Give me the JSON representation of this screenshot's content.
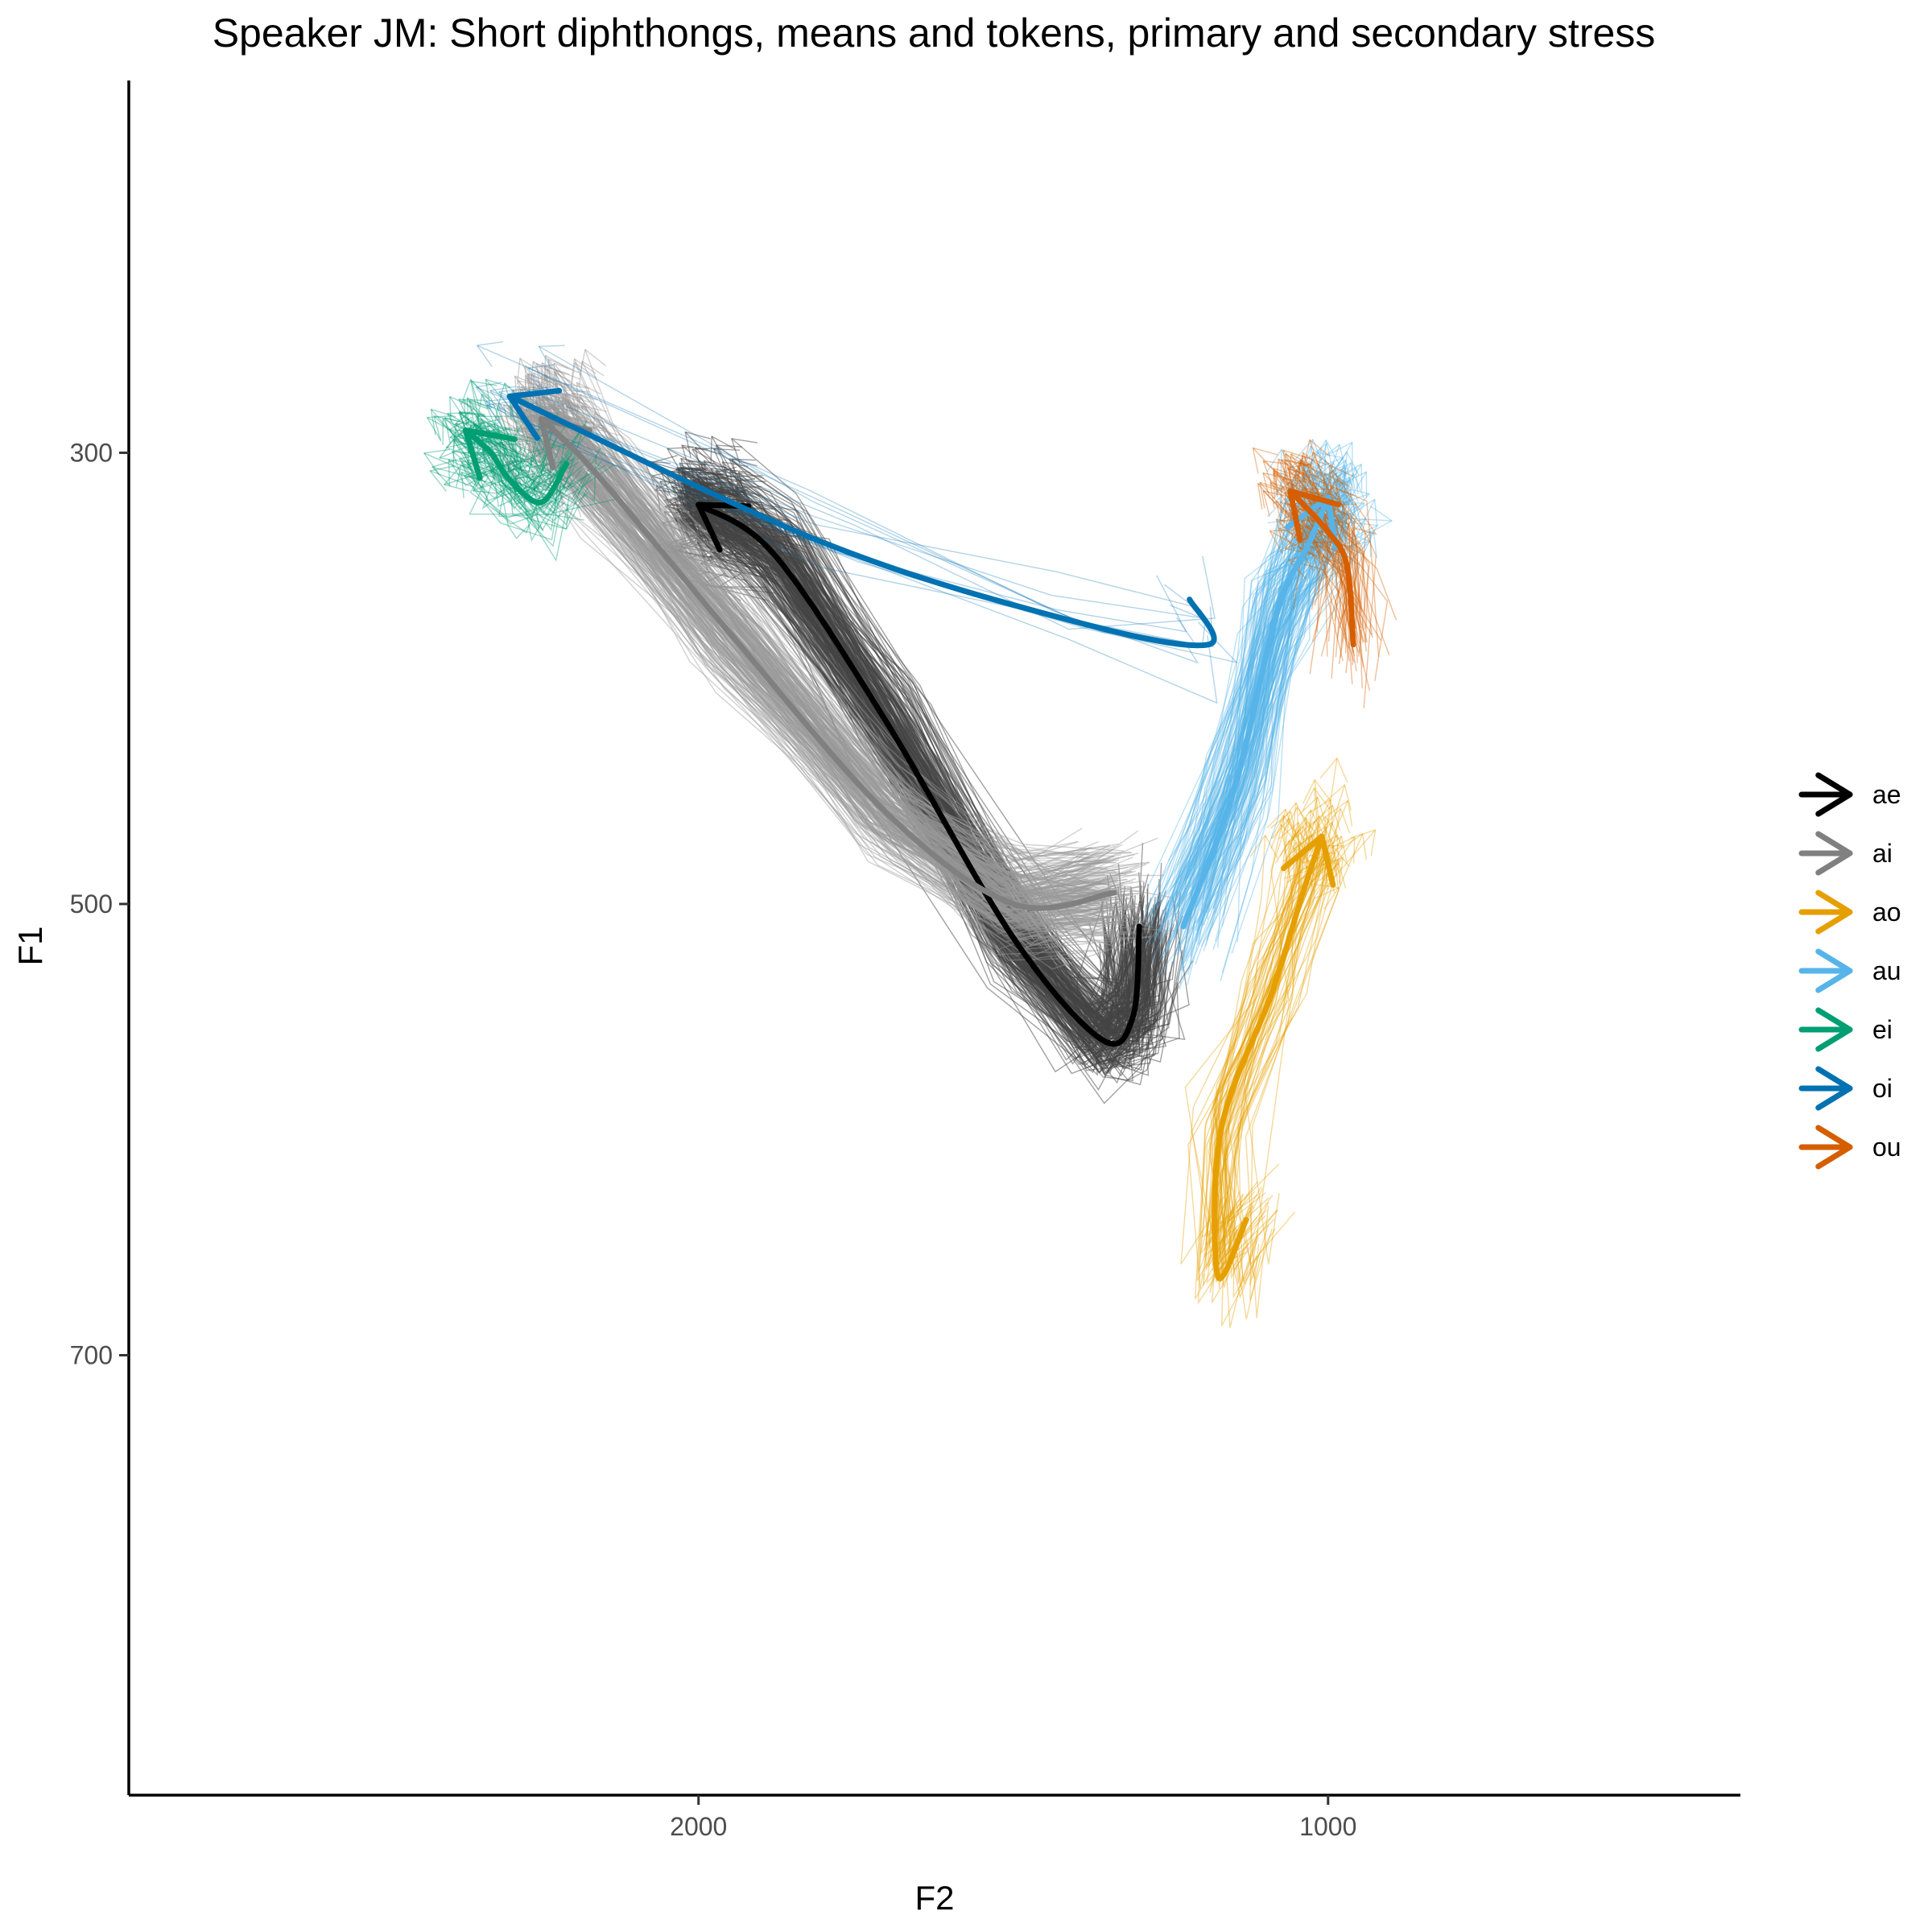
{
  "chart_data": {
    "type": "line",
    "title": "Speaker JM: Short diphthongs, means and tokens, primary and secondary stress",
    "xlabel": "F2",
    "ylabel": "F1",
    "x_reversed": true,
    "y_reversed": true,
    "xlim": [
      2905,
      345
    ],
    "ylim": [
      135,
      895
    ],
    "x_ticks": [
      2000,
      1000
    ],
    "y_ticks": [
      300,
      500,
      700
    ],
    "grid": false,
    "legend_position": "right",
    "series": [
      {
        "name": "ae",
        "color": "#000000",
        "mean_trajectory": [
          [
            1300,
            510
          ],
          [
            1310,
            550
          ],
          [
            1360,
            560
          ],
          [
            1500,
            515
          ],
          [
            1700,
            420
          ],
          [
            1880,
            345
          ],
          [
            2000,
            323
          ]
        ],
        "token_color": "#444444",
        "token_opacity": 0.5,
        "token_count": 260
      },
      {
        "name": "ai",
        "color": "#808080",
        "mean_trajectory": [
          [
            1340,
            495
          ],
          [
            1500,
            500
          ],
          [
            1700,
            460
          ],
          [
            1950,
            380
          ],
          [
            2160,
            310
          ],
          [
            2250,
            285
          ]
        ],
        "token_color": "#999999",
        "token_opacity": 0.45,
        "token_count": 240
      },
      {
        "name": "ao",
        "color": "#E69F00",
        "mean_trajectory": [
          [
            1130,
            640
          ],
          [
            1175,
            665
          ],
          [
            1170,
            600
          ],
          [
            1090,
            540
          ],
          [
            1040,
            495
          ],
          [
            1010,
            470
          ]
        ],
        "token_color": "#E69F00",
        "token_opacity": 0.4,
        "token_count": 60
      },
      {
        "name": "au",
        "color": "#56B4E9",
        "mean_trajectory": [
          [
            1230,
            510
          ],
          [
            1150,
            450
          ],
          [
            1080,
            370
          ],
          [
            1030,
            340
          ],
          [
            1000,
            320
          ]
        ],
        "token_color": "#56B4E9",
        "token_opacity": 0.4,
        "token_count": 150
      },
      {
        "name": "ei",
        "color": "#009E73",
        "mean_trajectory": [
          [
            2210,
            305
          ],
          [
            2250,
            322
          ],
          [
            2300,
            312
          ],
          [
            2330,
            300
          ],
          [
            2370,
            290
          ]
        ],
        "token_color": "#009E73",
        "token_opacity": 0.4,
        "token_count": 70
      },
      {
        "name": "oi",
        "color": "#0072B2",
        "mean_trajectory": [
          [
            1220,
            365
          ],
          [
            1190,
            385
          ],
          [
            1400,
            375
          ],
          [
            1800,
            340
          ],
          [
            2300,
            275
          ]
        ],
        "token_color": "#0072B2",
        "token_opacity": 0.3,
        "token_count": 10
      },
      {
        "name": "ou",
        "color": "#D55E00",
        "mean_trajectory": [
          [
            960,
            385
          ],
          [
            970,
            350
          ],
          [
            1000,
            335
          ],
          [
            1060,
            317
          ]
        ],
        "token_color": "#D55E00",
        "token_opacity": 0.4,
        "token_count": 60
      }
    ]
  }
}
